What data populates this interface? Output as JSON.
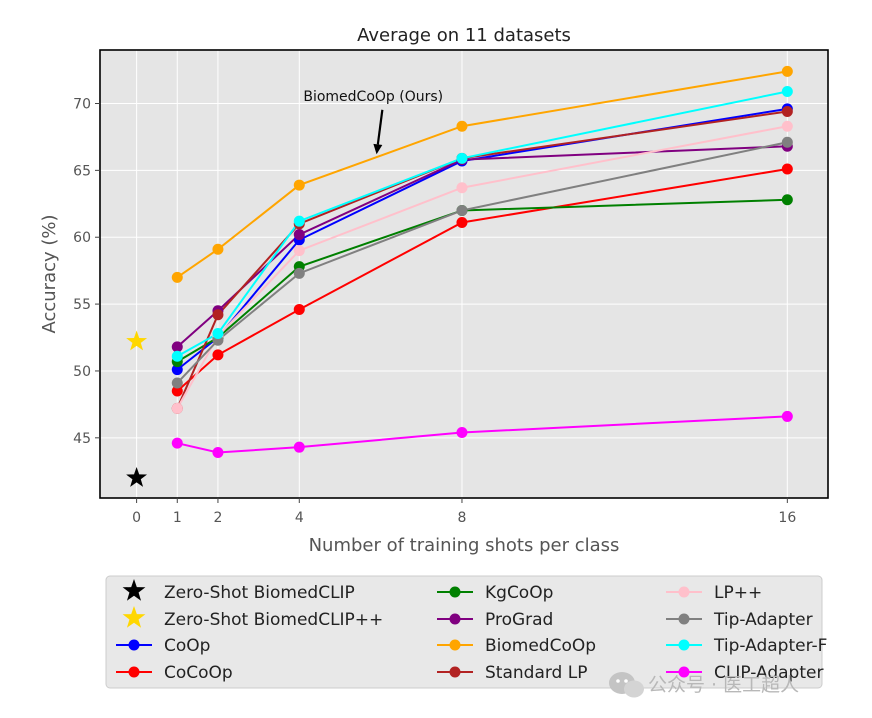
{
  "chart_data": {
    "type": "line",
    "title": "Average on 11 datasets",
    "xlabel": "Number of training shots per class",
    "ylabel": "Accuracy (%)",
    "xlim": [
      -0.9,
      17.0
    ],
    "ylim": [
      40.5,
      74.0
    ],
    "xticks": [
      0,
      1,
      2,
      4,
      8,
      16
    ],
    "yticks": [
      45,
      50,
      55,
      60,
      65,
      70
    ],
    "grid": true,
    "background": "#e5e5e5",
    "x": [
      1,
      2,
      4,
      8,
      16
    ],
    "series": [
      {
        "name": "CoOp",
        "color": "#0000ff",
        "values": [
          50.1,
          52.5,
          59.8,
          65.7,
          69.6
        ]
      },
      {
        "name": "CoCoOp",
        "color": "#ff0000",
        "values": [
          48.5,
          51.2,
          54.6,
          61.1,
          65.1
        ]
      },
      {
        "name": "KgCoOp",
        "color": "#008000",
        "values": [
          50.7,
          52.5,
          57.8,
          62.0,
          62.8
        ]
      },
      {
        "name": "ProGrad",
        "color": "#800080",
        "values": [
          51.8,
          54.5,
          60.2,
          65.8,
          66.8
        ]
      },
      {
        "name": "BiomedCoOp",
        "color": "#ffa500",
        "values": [
          57.0,
          59.1,
          63.9,
          68.3,
          72.4
        ]
      },
      {
        "name": "Standard LP",
        "color": "#b22222",
        "values": [
          47.2,
          54.2,
          61.0,
          65.9,
          69.4
        ]
      },
      {
        "name": "LP++",
        "color": "#ffc0cb",
        "values": [
          47.2,
          52.6,
          59.0,
          63.7,
          68.3
        ]
      },
      {
        "name": "Tip-Adapter",
        "color": "#808080",
        "values": [
          49.1,
          52.3,
          57.3,
          62.0,
          67.1
        ]
      },
      {
        "name": "Tip-Adapter-F",
        "color": "#00ffff",
        "values": [
          51.1,
          52.8,
          61.2,
          65.9,
          70.9
        ]
      },
      {
        "name": "CLIP-Adapter",
        "color": "#ff00ff",
        "values": [
          44.6,
          43.9,
          44.3,
          45.4,
          46.6
        ]
      }
    ],
    "zero_shot": [
      {
        "name": "Zero-Shot BiomedCLIP",
        "color": "#000000",
        "x": 0,
        "value": 42.0
      },
      {
        "name": "Zero-Shot BiomedCLIP++",
        "color": "#ffd700",
        "x": 0,
        "value": 52.2
      }
    ],
    "annotation": {
      "text": "BiomedCoOp (Ours)",
      "x": 4.1,
      "y": 70.2,
      "arrow_x": 5.9,
      "arrow_y": 66.2
    },
    "legend": {
      "location": "below plot, 3 columns",
      "entries": [
        {
          "label": "Zero-Shot BiomedCLIP",
          "marker": "star",
          "color": "#000000"
        },
        {
          "label": "Zero-Shot BiomedCLIP++",
          "marker": "star",
          "color": "#ffd700"
        },
        {
          "label": "CoOp",
          "marker": "line",
          "color": "#0000ff"
        },
        {
          "label": "CoCoOp",
          "marker": "line",
          "color": "#ff0000"
        },
        {
          "label": "KgCoOp",
          "marker": "line",
          "color": "#008000"
        },
        {
          "label": "ProGrad",
          "marker": "line",
          "color": "#800080"
        },
        {
          "label": "BiomedCoOp",
          "marker": "line",
          "color": "#ffa500"
        },
        {
          "label": "Standard LP",
          "marker": "line",
          "color": "#b22222"
        },
        {
          "label": "LP++",
          "marker": "line",
          "color": "#ffc0cb"
        },
        {
          "label": "Tip-Adapter",
          "marker": "line",
          "color": "#808080"
        },
        {
          "label": "Tip-Adapter-F",
          "marker": "line",
          "color": "#00ffff"
        },
        {
          "label": "CLIP-Adapter",
          "marker": "line",
          "color": "#ff00ff"
        }
      ]
    }
  },
  "watermark": {
    "text": "公众号 · 医工超人"
  }
}
